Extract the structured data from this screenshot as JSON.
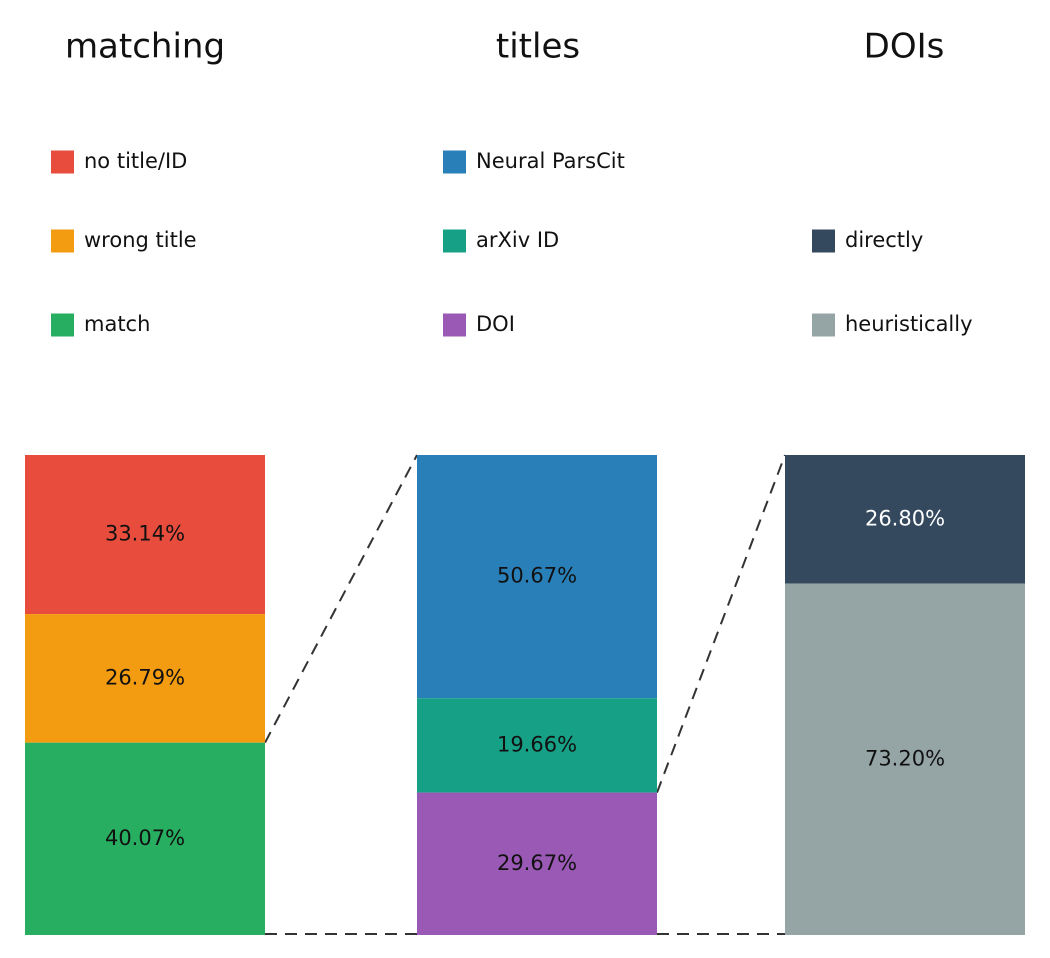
{
  "chart_data": [
    {
      "type": "bar",
      "stacked": true,
      "title": "matching",
      "segments": [
        {
          "label": "no title/ID",
          "value": 33.14,
          "display": "33.14%",
          "color": "#e74c3c",
          "text_color": "#111111"
        },
        {
          "label": "wrong title",
          "value": 26.79,
          "display": "26.79%",
          "color": "#f39c12",
          "text_color": "#111111"
        },
        {
          "label": "match",
          "value": 40.07,
          "display": "40.07%",
          "color": "#27ae60",
          "text_color": "#111111"
        }
      ]
    },
    {
      "type": "bar",
      "stacked": true,
      "title": "titles",
      "segments": [
        {
          "label": "Neural ParsCit",
          "value": 50.67,
          "display": "50.67%",
          "color": "#2980b9",
          "text_color": "#111111"
        },
        {
          "label": "arXiv ID",
          "value": 19.66,
          "display": "19.66%",
          "color": "#16a085",
          "text_color": "#111111"
        },
        {
          "label": "DOI",
          "value": 29.67,
          "display": "29.67%",
          "color": "#9b59b6",
          "text_color": "#111111"
        }
      ]
    },
    {
      "type": "bar",
      "stacked": true,
      "title": "DOIs",
      "segments": [
        {
          "label": "directly",
          "value": 26.8,
          "display": "26.80%",
          "color": "#34495e",
          "text_color": "#ffffff"
        },
        {
          "label": "heuristically",
          "value": 73.2,
          "display": "73.20%",
          "color": "#95a5a6",
          "text_color": "#111111"
        }
      ]
    }
  ]
}
